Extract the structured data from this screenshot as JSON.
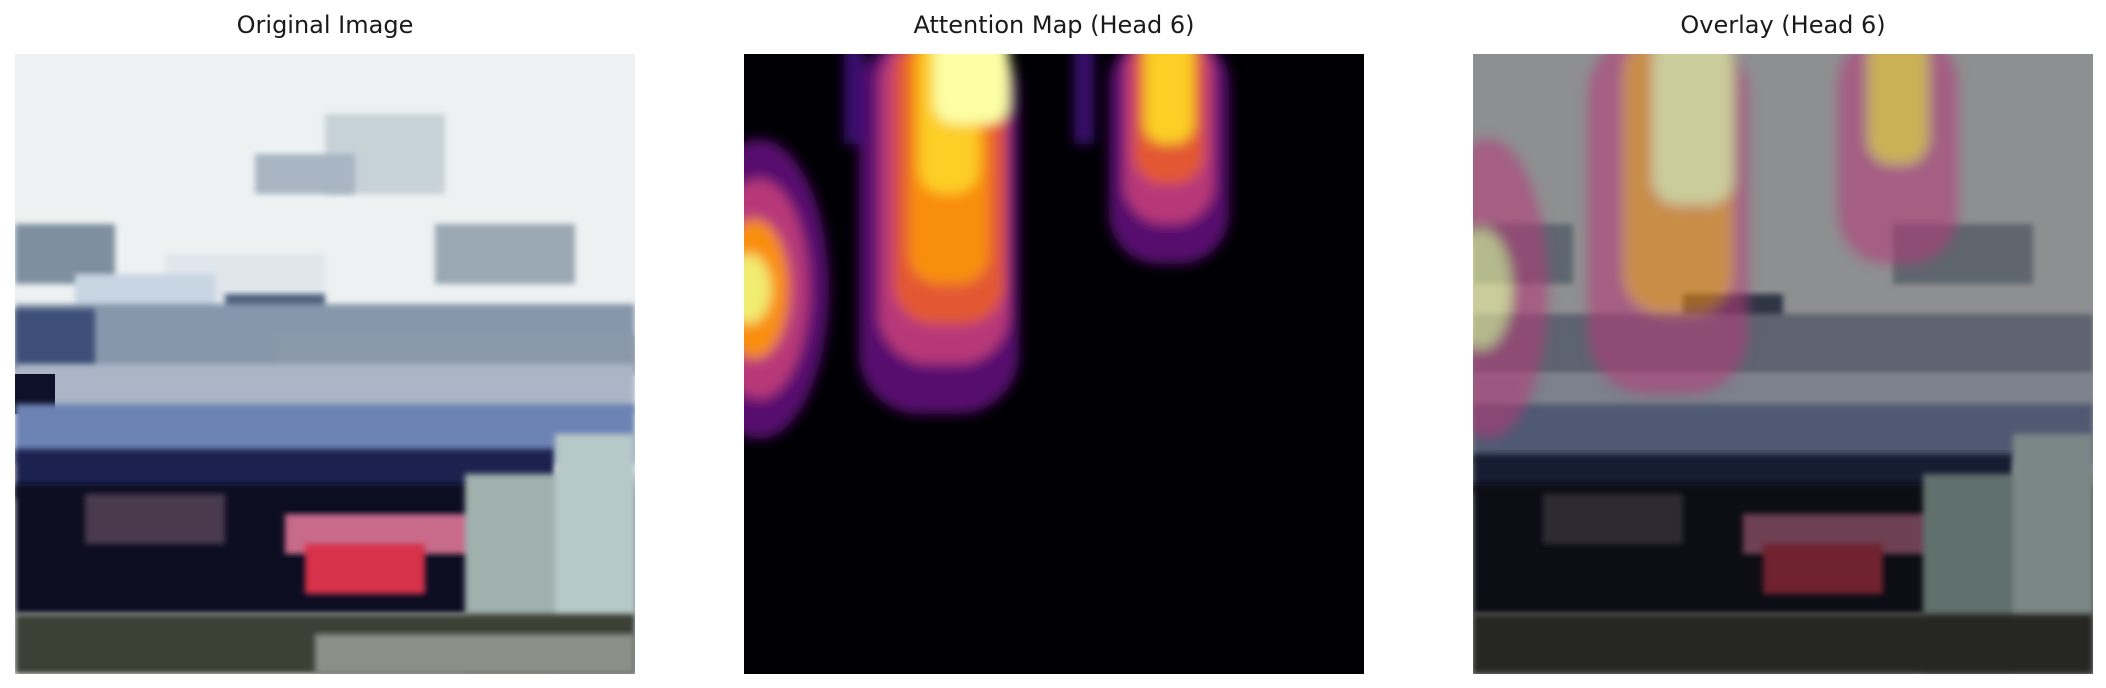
{
  "panels": [
    {
      "title": "Original Image"
    },
    {
      "title": "Attention Map (Head 6)"
    },
    {
      "title": "Overlay (Head 6)"
    }
  ],
  "colors": {
    "background": "#ffffff",
    "title_text": "#1a1a1a",
    "sky": "#edf1f2",
    "car_body_dark": "#0c0c22",
    "car_body_blue": "#6c82b3",
    "tail_light": "#d6304a",
    "heat_low": "#000004",
    "heat_mid": "#b73779",
    "heat_high": "#fcffa4"
  }
}
